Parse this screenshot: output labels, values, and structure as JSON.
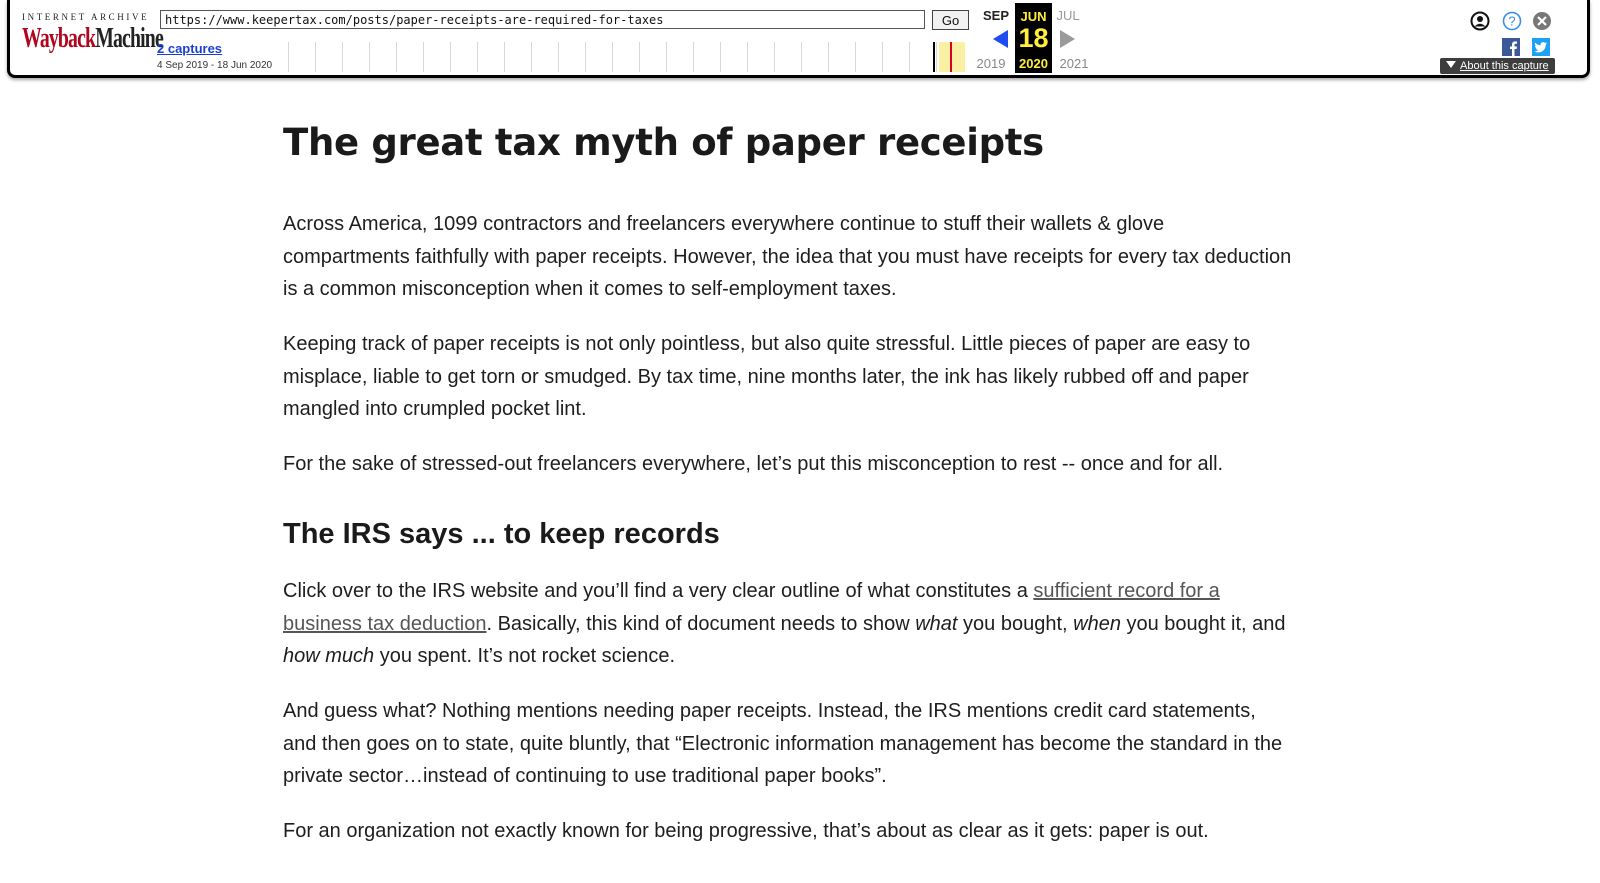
{
  "toolbar": {
    "logo_top": "INTERNET ARCHIVE",
    "logo_way": "Wayback",
    "logo_machine": "Machine",
    "url_value": "https://www.keepertax.com/posts/paper-receipts-are-required-for-taxes",
    "go_label": "Go",
    "captures_label": "2 captures",
    "capture_range": "4 Sep 2019 - 18 Jun 2020",
    "calendar": {
      "prev_month": "SEP",
      "current_month": "JUN",
      "next_month": "JUL",
      "prev_year": "2019",
      "current_day": "18",
      "current_year": "2020",
      "next_year": "2021"
    },
    "about_capture_label": "About this capture",
    "icons": [
      "user-icon",
      "help-icon",
      "close-icon",
      "facebook-icon",
      "twitter-icon"
    ],
    "accent_color": "#b1051d",
    "highlight_color": "#ffee3a"
  },
  "article": {
    "title": "The great tax myth of paper receipts",
    "p1": "Across America, 1099 contractors and freelancers everywhere continue to stuff their wallets & glove compartments faithfully with paper receipts. However, the idea that you must have receipts for every tax deduction is a common misconception when it comes to self-employment taxes.",
    "p2": "Keeping track of paper receipts is not only pointless, but also quite stressful. Little pieces of paper are easy to misplace, liable to get torn or smudged. By tax time, nine months later, the ink has likely rubbed off and paper mangled into crumpled pocket lint.",
    "p3": "For the sake of stressed-out freelancers everywhere, let’s put this misconception to rest -- once and for all.",
    "h2": "The IRS says ... to keep records",
    "p4": {
      "before_link": "Click over to the IRS website and you’ll find a very clear outline of what constitutes a ",
      "link": "sufficient record for a business tax deduction",
      "after_link": ". Basically, this kind of document  needs to show ",
      "em_what": "what",
      "mid1": " you bought, ",
      "em_when": "when",
      "mid2": " you bought it, and ",
      "em_how": "how much",
      "end": " you spent. It’s not rocket science."
    },
    "p5": "And guess what? Nothing mentions needing paper receipts. Instead, the IRS mentions credit card statements, and then goes on to state, quite bluntly, that “Electronic information management has become the standard in the private sector…instead of continuing to use traditional paper books”.",
    "p6": "For an organization not exactly known for being progressive, that’s about as clear as it gets: paper is out."
  }
}
